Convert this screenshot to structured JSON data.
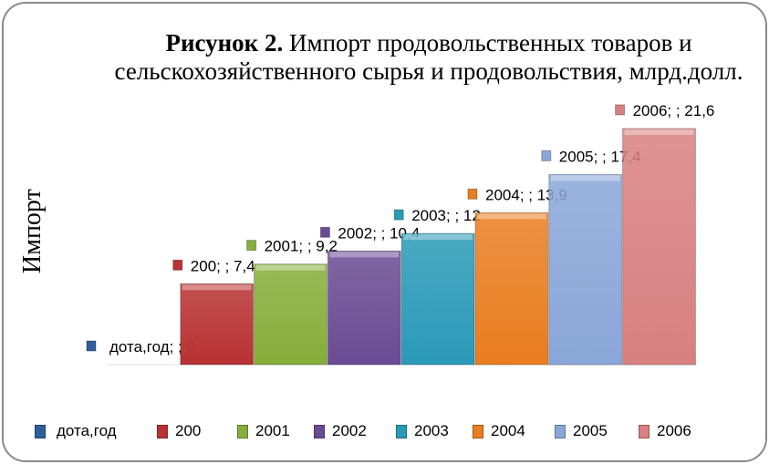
{
  "chart_data": {
    "type": "bar",
    "title_bold": "Рисунок 2.",
    "title_rest": " Импорт продовольственных товаров и сельскохозяйственного сырья и продовольствия, млрд.долл.",
    "ylabel": "Импорт",
    "xlabel": "",
    "ylim": [
      0,
      21.6
    ],
    "grid": false,
    "legend_position": "bottom",
    "categories": [
      "дота,год",
      "200",
      "2001",
      "2002",
      "2003",
      "2004",
      "2005",
      "2006"
    ],
    "values": [
      0,
      7.4,
      9.2,
      10.4,
      12,
      13.9,
      17.4,
      21.6
    ],
    "data_labels": [
      "дота,год; ; 0",
      "200; ; 7,4",
      "2001; ; 9,2",
      "2002; ; 10,4",
      "2003; ; 12",
      "2004; ; 13,9",
      "2005; ; 17,4",
      "2006; ; 21,6"
    ],
    "colors": [
      "#2f5e9a",
      "#b83232",
      "#86ae3a",
      "#6a4b94",
      "#2a9ab8",
      "#ea7d20",
      "#8aa6d8",
      "#d98080"
    ]
  }
}
